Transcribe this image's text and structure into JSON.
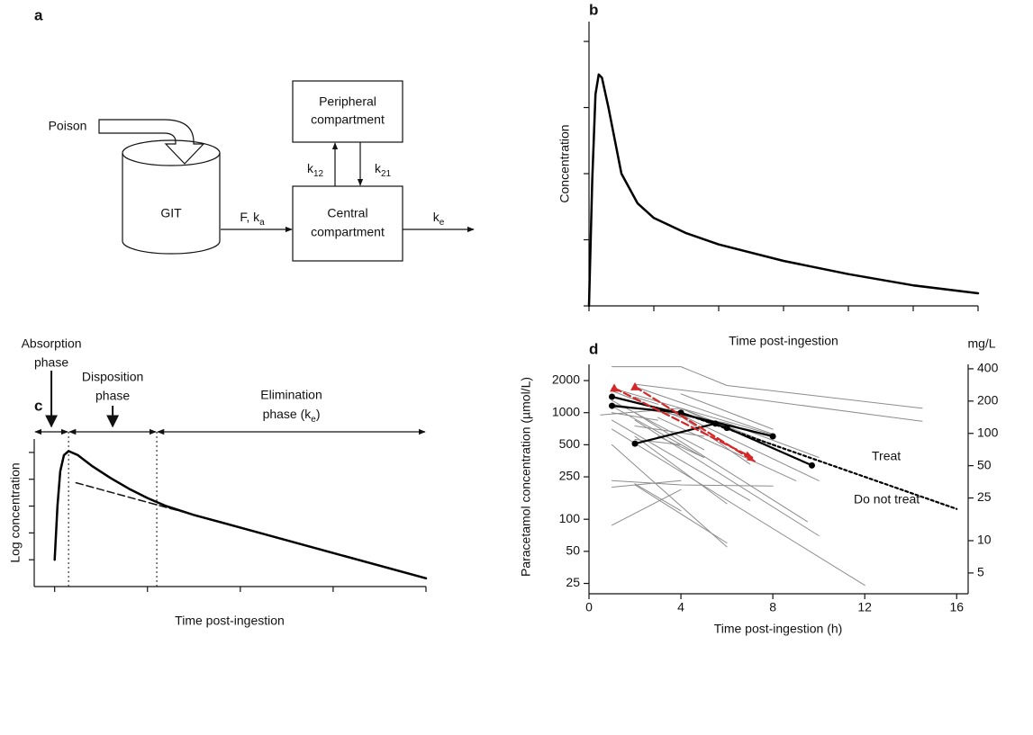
{
  "diagram": {
    "label": "a",
    "nodes": [
      {
        "label": "Poison"
      },
      {
        "label": "GIT"
      },
      {
        "lines": [
          "Peripheral",
          "compartment"
        ]
      },
      {
        "lines": [
          "Central",
          "compartment"
        ]
      }
    ],
    "edges": [
      {
        "label": "F, k",
        "sub": "a"
      },
      {
        "label": "k",
        "sub": "12"
      },
      {
        "label": "k",
        "sub": "21"
      },
      {
        "label": "k",
        "sub": "e"
      }
    ]
  },
  "chart_data": [
    {
      "type": "line",
      "label": "b",
      "xlabel": "Time post-ingestion",
      "ylabel": "Concentration",
      "color": "#000000",
      "x": [
        0,
        0.1,
        0.2,
        0.3,
        0.4,
        0.6,
        0.8,
        1,
        1.5,
        2,
        3,
        4,
        6,
        8,
        10,
        12
      ],
      "values": [
        0,
        1.9,
        3.2,
        3.5,
        3.45,
        3.0,
        2.5,
        2.0,
        1.55,
        1.33,
        1.1,
        0.93,
        0.68,
        0.48,
        0.31,
        0.19
      ],
      "xlim": [
        0,
        12
      ],
      "xticks": [
        0,
        2,
        4,
        6,
        8,
        10,
        12
      ],
      "ylim": [
        0,
        4.3
      ],
      "yticks": [
        0,
        1,
        2,
        3,
        4
      ],
      "tick_labels": false
    },
    {
      "type": "line",
      "label": "c",
      "xlabel": "Time post-ingestion",
      "ylabel": "Log concentration",
      "color": "#000000",
      "x": [
        0,
        0.03,
        0.06,
        0.1,
        0.15,
        0.25,
        0.4,
        0.6,
        0.8,
        1.0,
        1.2,
        1.5,
        2,
        3,
        4
      ],
      "values": [
        1.0,
        3.0,
        4.3,
        4.9,
        5.05,
        4.9,
        4.5,
        4.05,
        3.65,
        3.3,
        3.0,
        2.67,
        2.2,
        1.25,
        0.31
      ],
      "extrapolation": {
        "x": [
          0.23,
          1.5
        ],
        "values": [
          3.87,
          2.67
        ]
      },
      "phase_boundaries": [
        0.15,
        1.1
      ],
      "phases": [
        {
          "lines": [
            "Absorption",
            "phase"
          ]
        },
        {
          "lines": [
            "Disposition",
            "phase"
          ]
        },
        {
          "lines": [
            "Elimination",
            "phase (k"
          ],
          "sub": "e",
          "end": ")"
        }
      ],
      "xlim": [
        -0.22,
        4
      ],
      "xticks": [
        0,
        1,
        2,
        3,
        4
      ],
      "ylim": [
        0,
        5.5
      ],
      "yticks": [
        1,
        2,
        3,
        4,
        5
      ],
      "tick_labels": false
    },
    {
      "type": "line",
      "label": "d",
      "xlabel": "Time post-ingestion (h)",
      "ylabel": "Paracetamol concentration (µmol/L)",
      "y2label": "mg/L",
      "log_scale": true,
      "tick_labels": true,
      "xlim": [
        0,
        16.5
      ],
      "xticks": [
        0,
        4,
        8,
        12,
        16
      ],
      "ylim": [
        20,
        2840
      ],
      "yticks": [
        25,
        50,
        100,
        250,
        500,
        1000,
        2000
      ],
      "y2lim": [
        3.2,
        440
      ],
      "y2ticks": [
        5,
        10,
        25,
        50,
        100,
        200,
        400
      ],
      "annotations": [
        "Treat",
        "Do not treat"
      ],
      "series": [
        {
          "color": "#8c8c8c",
          "x": [
            1,
            4,
            6,
            14.5
          ],
          "values": [
            2700,
            2700,
            1800,
            1100
          ]
        },
        {
          "color": "#8c8c8c",
          "x": [
            2,
            6,
            14.5
          ],
          "values": [
            1850,
            1450,
            830
          ]
        },
        {
          "color": "#8c8c8c",
          "x": [
            2,
            8
          ],
          "values": [
            1750,
            630
          ]
        },
        {
          "color": "#8c8c8c",
          "x": [
            4,
            8
          ],
          "values": [
            1500,
            700
          ]
        },
        {
          "color": "#8c8c8c",
          "x": [
            1,
            6,
            10
          ],
          "values": [
            1200,
            800,
            380
          ]
        },
        {
          "color": "#8c8c8c",
          "x": [
            0.5,
            4,
            6
          ],
          "values": [
            950,
            1100,
            700
          ]
        },
        {
          "color": "#8c8c8c",
          "x": [
            1,
            4
          ],
          "values": [
            1600,
            900
          ]
        },
        {
          "color": "#8c8c8c",
          "x": [
            1,
            5
          ],
          "values": [
            1300,
            450
          ]
        },
        {
          "color": "#8c8c8c",
          "x": [
            1,
            12
          ],
          "values": [
            700,
            24
          ]
        },
        {
          "color": "#8c8c8c",
          "x": [
            2,
            9.5
          ],
          "values": [
            1000,
            95
          ]
        },
        {
          "color": "#8c8c8c",
          "x": [
            1,
            6
          ],
          "values": [
            500,
            55
          ]
        },
        {
          "color": "#8c8c8c",
          "x": [
            2,
            10
          ],
          "values": [
            850,
            70
          ]
        },
        {
          "color": "#8c8c8c",
          "x": [
            1,
            4,
            8
          ],
          "values": [
            230,
            210,
            205
          ]
        },
        {
          "color": "#8c8c8c",
          "x": [
            1,
            4
          ],
          "values": [
            200,
            230
          ]
        },
        {
          "color": "#8c8c8c",
          "x": [
            2,
            6
          ],
          "values": [
            210,
            60
          ]
        },
        {
          "color": "#8c8c8c",
          "x": [
            1,
            4
          ],
          "values": [
            88,
            190
          ]
        },
        {
          "color": "#8c8c8c",
          "x": [
            2,
            4
          ],
          "values": [
            215,
            120
          ]
        },
        {
          "color": "#8c8c8c",
          "x": [
            3,
            5
          ],
          "values": [
            600,
            380
          ]
        },
        {
          "color": "#8c8c8c",
          "x": [
            2,
            5
          ],
          "values": [
            750,
            600
          ]
        },
        {
          "color": "#8c8c8c",
          "x": [
            1,
            3
          ],
          "values": [
            1000,
            850
          ]
        },
        {
          "color": "#8c8c8c",
          "x": [
            4,
            8
          ],
          "values": [
            1100,
            620
          ]
        },
        {
          "color": "#8c8c8c",
          "x": [
            2,
            4
          ],
          "values": [
            560,
            500
          ]
        },
        {
          "color": "#8c8c8c",
          "x": [
            1,
            5
          ],
          "values": [
            1150,
            380
          ]
        },
        {
          "color": "#8c8c8c",
          "x": [
            3,
            9
          ],
          "values": [
            900,
            230
          ]
        },
        {
          "color": "#8c8c8c",
          "x": [
            2,
            6
          ],
          "values": [
            600,
            140
          ]
        },
        {
          "color": "#8c8c8c",
          "x": [
            3,
            7
          ],
          "values": [
            1300,
            330
          ]
        },
        {
          "color": "#8c8c8c",
          "x": [
            1,
            7
          ],
          "values": [
            850,
            150
          ]
        },
        {
          "color": "#8c8c8c",
          "x": [
            4,
            10
          ],
          "values": [
            950,
            230
          ]
        },
        {
          "color": "#8c8c8c",
          "x": [
            1,
            4,
            8
          ],
          "values": [
            1700,
            1100,
            500
          ]
        },
        {
          "color": "#8c8c8c",
          "x": [
            2,
            3
          ],
          "values": [
            1400,
            1200
          ]
        },
        {
          "color": "#000000",
          "marker": "circle",
          "x": [
            1,
            8
          ],
          "values": [
            1410,
            600
          ]
        },
        {
          "color": "#000000",
          "marker": "circle",
          "x": [
            1,
            4,
            6,
            9.7
          ],
          "values": [
            1160,
            1000,
            720,
            320
          ]
        },
        {
          "color": "#000000",
          "marker": "circle",
          "x": [
            2,
            5.5
          ],
          "values": [
            512,
            790
          ]
        },
        {
          "color": "#000000",
          "style": "dotted",
          "x": [
            4,
            16
          ],
          "values": [
            1000,
            125
          ]
        },
        {
          "color": "#d62728",
          "style": "dashed",
          "marker": "triangle",
          "arrow": true,
          "x": [
            1.1,
            7.1
          ],
          "values": [
            1700,
            380
          ]
        },
        {
          "color": "#d62728",
          "style": "dashed",
          "marker": "triangle",
          "arrow": true,
          "x": [
            2,
            7.2
          ],
          "values": [
            1750,
            350
          ]
        }
      ]
    }
  ]
}
